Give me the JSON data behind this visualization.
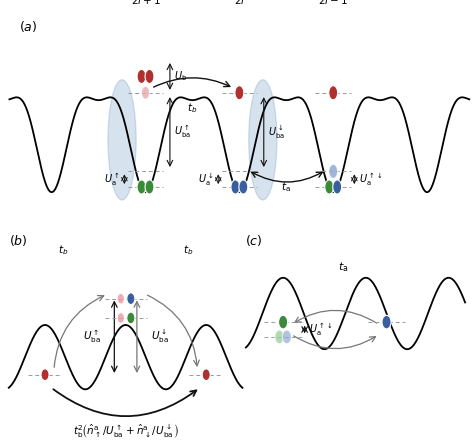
{
  "bg_color": "#ffffff",
  "red_color": "#b03030",
  "red_light": "#e8a0a8",
  "green_color": "#3a8a3a",
  "green_light": "#90cc90",
  "blue_color": "#3a5fa0",
  "blue_light": "#90aad0",
  "arrow_color": "#777777",
  "black": "#111111"
}
